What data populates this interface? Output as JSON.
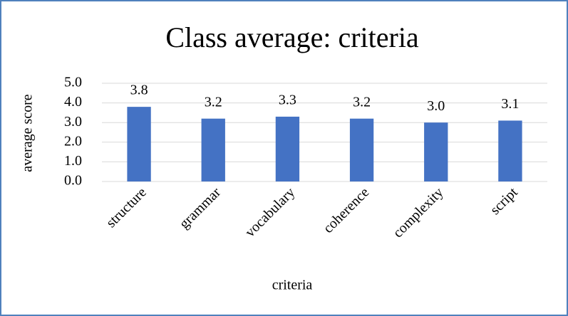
{
  "chart_data": {
    "type": "bar",
    "title": "Class average: criteria",
    "x_label": "criteria",
    "y_label": "average score",
    "categories": [
      "structure",
      "grammar",
      "vocabulary",
      "coherence",
      "complexity",
      "script"
    ],
    "values": [
      3.8,
      3.2,
      3.3,
      3.2,
      3.0,
      3.1
    ],
    "value_labels": [
      "3.8",
      "3.2",
      "3.3",
      "3.2",
      "3.0",
      "3.1"
    ],
    "color": "#4472c4",
    "ylim": [
      0,
      5
    ],
    "yticks": [
      {
        "value": 0,
        "label": "0.0"
      },
      {
        "value": 1,
        "label": "1.0"
      },
      {
        "value": 2,
        "label": "2.0"
      },
      {
        "value": 3,
        "label": "3.0"
      },
      {
        "value": 4,
        "label": "4.0"
      },
      {
        "value": 5,
        "label": "5.0"
      }
    ],
    "grid": true
  }
}
